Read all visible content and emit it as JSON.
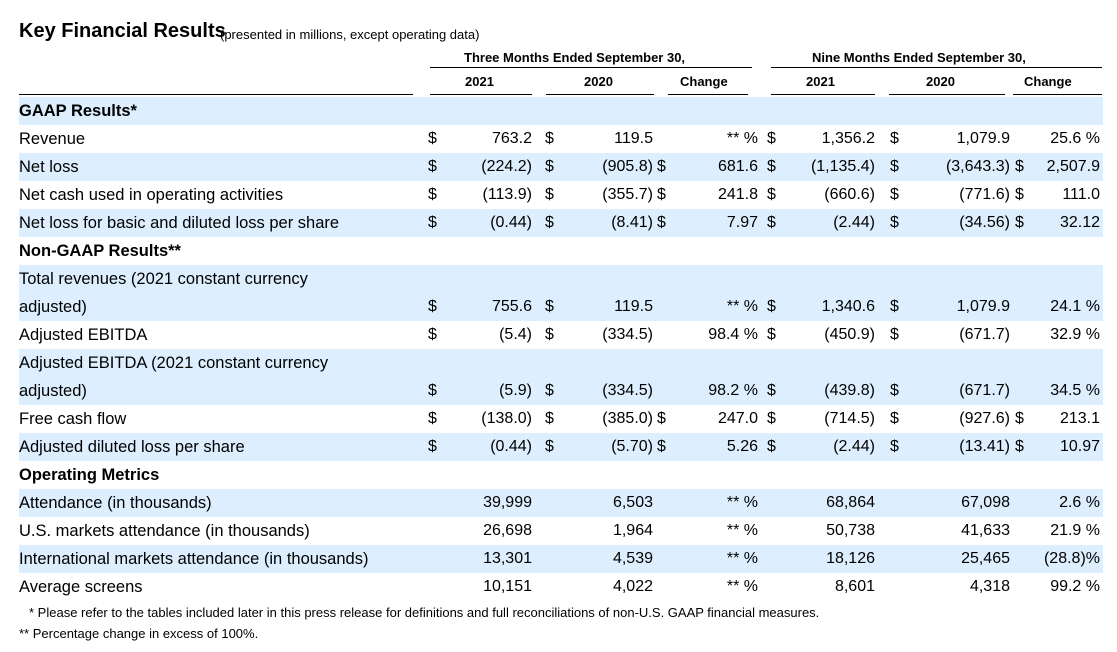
{
  "title": "Key Financial Results",
  "subtitle": "(presented in millions, except operating data)",
  "group_three": "Three Months Ended September 30,",
  "group_nine": "Nine Months Ended September 30,",
  "cols": [
    "2021",
    "2020",
    "Change",
    "2021",
    "2020",
    "Change"
  ],
  "rows": [
    {
      "type": "section",
      "label": "GAAP Results*"
    },
    {
      "type": "data",
      "label": "Revenue",
      "d1": "$",
      "v1": "763.2",
      "d2": "$",
      "v2": "119.5",
      "d3": "",
      "c1": "** %",
      "d4": "$",
      "v3": "1,356.2",
      "d5": "$",
      "v4": "1,079.9",
      "d6": "",
      "c2": "25.6 %"
    },
    {
      "type": "data",
      "label": "Net loss",
      "d1": "$",
      "v1": "(224.2)",
      "d2": "$",
      "v2": "(905.8)",
      "d3": "$",
      "c1": "681.6",
      "d4": "$",
      "v3": "(1,135.4)",
      "d5": "$",
      "v4": "(3,643.3)",
      "d6": "$",
      "c2": "2,507.9"
    },
    {
      "type": "data",
      "label": "Net cash used in operating activities",
      "d1": "$",
      "v1": "(113.9)",
      "d2": "$",
      "v2": "(355.7)",
      "d3": "$",
      "c1": "241.8",
      "d4": "$",
      "v3": "(660.6)",
      "d5": "$",
      "v4": "(771.6)",
      "d6": "$",
      "c2": "111.0"
    },
    {
      "type": "data",
      "label": "Net loss for basic and diluted loss per share",
      "d1": "$",
      "v1": "(0.44)",
      "d2": "$",
      "v2": "(8.41)",
      "d3": "$",
      "c1": "7.97",
      "d4": "$",
      "v3": "(2.44)",
      "d5": "$",
      "v4": "(34.56)",
      "d6": "$",
      "c2": "32.12"
    },
    {
      "type": "section",
      "label": "Non-GAAP Results**"
    },
    {
      "type": "data",
      "tall": true,
      "label": "Total revenues (2021 constant currency",
      "label2": "adjusted)",
      "d1": "$",
      "v1": "755.6",
      "d2": "$",
      "v2": "119.5",
      "d3": "",
      "c1": "** %",
      "d4": "$",
      "v3": "1,340.6",
      "d5": "$",
      "v4": "1,079.9",
      "d6": "",
      "c2": "24.1 %"
    },
    {
      "type": "data",
      "label": "Adjusted EBITDA",
      "d1": "$",
      "v1": "(5.4)",
      "d2": "$",
      "v2": "(334.5)",
      "d3": "",
      "c1": "98.4 %",
      "d4": "$",
      "v3": "(450.9)",
      "d5": "$",
      "v4": "(671.7)",
      "d6": "",
      "c2": "32.9 %"
    },
    {
      "type": "data",
      "tall": true,
      "label": "Adjusted EBITDA (2021 constant currency",
      "label2": "adjusted)",
      "d1": "$",
      "v1": "(5.9)",
      "d2": "$",
      "v2": "(334.5)",
      "d3": "",
      "c1": "98.2 %",
      "d4": "$",
      "v3": "(439.8)",
      "d5": "$",
      "v4": "(671.7)",
      "d6": "",
      "c2": "34.5 %"
    },
    {
      "type": "data",
      "label": "Free cash flow",
      "d1": "$",
      "v1": "(138.0)",
      "d2": "$",
      "v2": "(385.0)",
      "d3": "$",
      "c1": "247.0",
      "d4": "$",
      "v3": "(714.5)",
      "d5": "$",
      "v4": "(927.6)",
      "d6": "$",
      "c2": "213.1"
    },
    {
      "type": "data",
      "label": "Adjusted diluted loss per share",
      "d1": "$",
      "v1": "(0.44)",
      "d2": "$",
      "v2": "(5.70)",
      "d3": "$",
      "c1": "5.26",
      "d4": "$",
      "v3": "(2.44)",
      "d5": "$",
      "v4": "(13.41)",
      "d6": "$",
      "c2": "10.97"
    },
    {
      "type": "section",
      "label": "Operating Metrics"
    },
    {
      "type": "data",
      "label": "Attendance (in thousands)",
      "d1": "",
      "v1": "39,999",
      "d2": "",
      "v2": "6,503",
      "d3": "",
      "c1": "** %",
      "d4": "",
      "v3": "68,864",
      "d5": "",
      "v4": "67,098",
      "d6": "",
      "c2": "2.6 %"
    },
    {
      "type": "data",
      "label": "U.S. markets attendance (in thousands)",
      "d1": "",
      "v1": "26,698",
      "d2": "",
      "v2": "1,964",
      "d3": "",
      "c1": "** %",
      "d4": "",
      "v3": "50,738",
      "d5": "",
      "v4": "41,633",
      "d6": "",
      "c2": "21.9 %"
    },
    {
      "type": "data",
      "label": "International markets attendance (in thousands)",
      "d1": "",
      "v1": "13,301",
      "d2": "",
      "v2": "4,539",
      "d3": "",
      "c1": "** %",
      "d4": "",
      "v3": "18,126",
      "d5": "",
      "v4": "25,465",
      "d6": "",
      "c2": "(28.8)%"
    },
    {
      "type": "data",
      "label": "Average screens",
      "d1": "",
      "v1": "10,151",
      "d2": "",
      "v2": "4,022",
      "d3": "",
      "c1": "** %",
      "d4": "",
      "v3": "8,601",
      "d5": "",
      "v4": "4,318",
      "d6": "",
      "c2": "99.2 %"
    }
  ],
  "footnotes": [
    "* Please refer to the tables included later in this press release for definitions and full reconciliations of non-U.S. GAAP financial measures.",
    "** Percentage change in excess of 100%."
  ]
}
